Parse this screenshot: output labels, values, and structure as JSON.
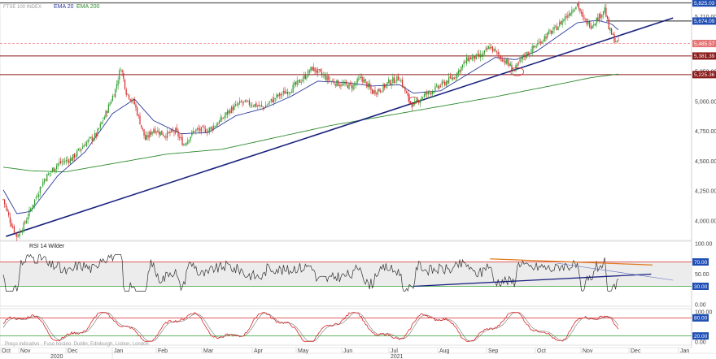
{
  "legend": {
    "symbol": "FTSE 100 INDEX",
    "ema20": "EMA 20",
    "ema200": "EMA 200",
    "ema20_color": "#2b3a9c",
    "ema200_color": "#2e8b2e"
  },
  "rsi_panel": {
    "title": "RSI 14 Wilder",
    "ticks": [
      "100.00",
      "70.00",
      "50.00",
      "30.00",
      "0.00"
    ],
    "badge_70": "70.00",
    "badge_30": "30.00"
  },
  "stoch_panel": {
    "ticks": [
      "100.00",
      "80.00",
      "20.00",
      "0.00"
    ],
    "badge_80": "80.00",
    "badge_20": "20.00"
  },
  "footer": {
    "note": "Preço indicativo · Fuso horário: Dublin, Edinburgh, Lisbon, London"
  },
  "x_axis": {
    "months": [
      "Oct",
      "Nov",
      "Dec",
      "Jan",
      "Feb",
      "Mar",
      "Apr",
      "May",
      "Jun",
      "Jul",
      "Aug",
      "Sep",
      "Oct",
      "Nov",
      "Dec",
      "Jan"
    ],
    "years": [
      "2020",
      "2021"
    ]
  },
  "price_axis": {
    "ticks": [
      "5,710.00",
      "5,500.00",
      "5,250.00",
      "5,000.00",
      "4,750.00",
      "4,500.00",
      "4,250.00",
      "4,000.00"
    ],
    "badges": {
      "top": "5,825.03",
      "resistance": "5,674.09",
      "last": "5,485.57",
      "support1": "5,381.39",
      "support2": "5,225.36"
    }
  },
  "colors": {
    "bull": "#2e9e2e",
    "bear": "#d62828",
    "trend": "#1a237e",
    "hline": "#8b1a1a",
    "dashed": "#f08080",
    "orange": "#e07b1f",
    "axis_badge": "#3a6fd8"
  },
  "chart_data": {
    "type": "candlestick",
    "price_range": [
      3850,
      5830
    ],
    "close_key_points": [
      {
        "x": 0,
        "y": 4180
      },
      {
        "x": 5,
        "y": 4000
      },
      {
        "x": 10,
        "y": 3870
      },
      {
        "x": 15,
        "y": 3960
      },
      {
        "x": 20,
        "y": 4100
      },
      {
        "x": 30,
        "y": 4350
      },
      {
        "x": 40,
        "y": 4480
      },
      {
        "x": 50,
        "y": 4520
      },
      {
        "x": 60,
        "y": 4650
      },
      {
        "x": 68,
        "y": 4720
      },
      {
        "x": 75,
        "y": 4900
      },
      {
        "x": 82,
        "y": 5100
      },
      {
        "x": 86,
        "y": 5290
      },
      {
        "x": 90,
        "y": 5080
      },
      {
        "x": 96,
        "y": 4980
      },
      {
        "x": 104,
        "y": 4680
      },
      {
        "x": 110,
        "y": 4770
      },
      {
        "x": 118,
        "y": 4720
      },
      {
        "x": 126,
        "y": 4750
      },
      {
        "x": 132,
        "y": 4640
      },
      {
        "x": 140,
        "y": 4760
      },
      {
        "x": 150,
        "y": 4760
      },
      {
        "x": 158,
        "y": 4830
      },
      {
        "x": 166,
        "y": 4930
      },
      {
        "x": 174,
        "y": 4990
      },
      {
        "x": 182,
        "y": 4980
      },
      {
        "x": 190,
        "y": 4950
      },
      {
        "x": 200,
        "y": 5040
      },
      {
        "x": 210,
        "y": 5100
      },
      {
        "x": 220,
        "y": 5200
      },
      {
        "x": 226,
        "y": 5280
      },
      {
        "x": 232,
        "y": 5230
      },
      {
        "x": 240,
        "y": 5170
      },
      {
        "x": 248,
        "y": 5140
      },
      {
        "x": 256,
        "y": 5130
      },
      {
        "x": 262,
        "y": 5200
      },
      {
        "x": 270,
        "y": 5080
      },
      {
        "x": 276,
        "y": 5100
      },
      {
        "x": 282,
        "y": 5160
      },
      {
        "x": 290,
        "y": 5200
      },
      {
        "x": 296,
        "y": 5030
      },
      {
        "x": 300,
        "y": 4960
      },
      {
        "x": 306,
        "y": 5040
      },
      {
        "x": 314,
        "y": 5090
      },
      {
        "x": 322,
        "y": 5150
      },
      {
        "x": 330,
        "y": 5210
      },
      {
        "x": 340,
        "y": 5360
      },
      {
        "x": 350,
        "y": 5380
      },
      {
        "x": 356,
        "y": 5460
      },
      {
        "x": 362,
        "y": 5390
      },
      {
        "x": 368,
        "y": 5330
      },
      {
        "x": 374,
        "y": 5260
      },
      {
        "x": 380,
        "y": 5370
      },
      {
        "x": 388,
        "y": 5450
      },
      {
        "x": 396,
        "y": 5540
      },
      {
        "x": 404,
        "y": 5610
      },
      {
        "x": 410,
        "y": 5690
      },
      {
        "x": 416,
        "y": 5770
      },
      {
        "x": 420,
        "y": 5820
      },
      {
        "x": 424,
        "y": 5690
      },
      {
        "x": 430,
        "y": 5640
      },
      {
        "x": 436,
        "y": 5710
      },
      {
        "x": 440,
        "y": 5780
      },
      {
        "x": 443,
        "y": 5610
      },
      {
        "x": 447,
        "y": 5520
      },
      {
        "x": 450,
        "y": 5485
      }
    ],
    "ema20_key_points": [
      {
        "x": 0,
        "y": 4260
      },
      {
        "x": 10,
        "y": 4060
      },
      {
        "x": 20,
        "y": 4080
      },
      {
        "x": 40,
        "y": 4380
      },
      {
        "x": 60,
        "y": 4580
      },
      {
        "x": 80,
        "y": 4900
      },
      {
        "x": 96,
        "y": 5020
      },
      {
        "x": 110,
        "y": 4840
      },
      {
        "x": 130,
        "y": 4730
      },
      {
        "x": 150,
        "y": 4740
      },
      {
        "x": 170,
        "y": 4880
      },
      {
        "x": 190,
        "y": 4940
      },
      {
        "x": 210,
        "y": 5040
      },
      {
        "x": 230,
        "y": 5170
      },
      {
        "x": 250,
        "y": 5160
      },
      {
        "x": 270,
        "y": 5130
      },
      {
        "x": 290,
        "y": 5140
      },
      {
        "x": 300,
        "y": 5070
      },
      {
        "x": 320,
        "y": 5090
      },
      {
        "x": 340,
        "y": 5230
      },
      {
        "x": 360,
        "y": 5370
      },
      {
        "x": 375,
        "y": 5350
      },
      {
        "x": 390,
        "y": 5420
      },
      {
        "x": 405,
        "y": 5540
      },
      {
        "x": 420,
        "y": 5660
      },
      {
        "x": 435,
        "y": 5680
      },
      {
        "x": 445,
        "y": 5650
      },
      {
        "x": 450,
        "y": 5600
      }
    ],
    "ema200_key_points": [
      {
        "x": 0,
        "y": 4450
      },
      {
        "x": 20,
        "y": 4420
      },
      {
        "x": 45,
        "y": 4410
      },
      {
        "x": 80,
        "y": 4480
      },
      {
        "x": 120,
        "y": 4560
      },
      {
        "x": 160,
        "y": 4600
      },
      {
        "x": 200,
        "y": 4700
      },
      {
        "x": 240,
        "y": 4800
      },
      {
        "x": 280,
        "y": 4880
      },
      {
        "x": 320,
        "y": 4960
      },
      {
        "x": 360,
        "y": 5040
      },
      {
        "x": 400,
        "y": 5130
      },
      {
        "x": 430,
        "y": 5200
      },
      {
        "x": 450,
        "y": 5230
      }
    ],
    "horizontal_lines": [
      5674.09,
      5381.39,
      5225.36
    ],
    "trendline": {
      "from": {
        "x": 2,
        "y": 3870
      },
      "to": {
        "x": 490,
        "y": 5700
      }
    },
    "rsi": {
      "range": [
        0,
        100
      ],
      "levels": [
        70,
        30
      ]
    },
    "stochastic": {
      "range": [
        0,
        100
      ],
      "levels": [
        80,
        20
      ]
    }
  }
}
